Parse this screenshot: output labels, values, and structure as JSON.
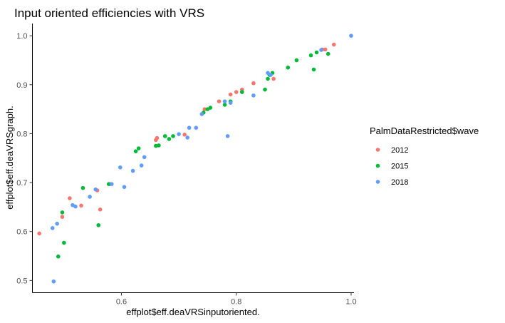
{
  "chart_data": {
    "type": "scatter",
    "title": "Input oriented efficiencies with VRS",
    "xlabel": "effplot$eff.deaVRSinputoriented.",
    "ylabel": "effplot$eff.deaVRSgraph.",
    "xlim": [
      0.445,
      1.005
    ],
    "ylim": [
      0.475,
      1.025
    ],
    "x_ticks": [
      0.6,
      0.8,
      1.0
    ],
    "x_tick_labels": [
      "0.6",
      "0.8",
      "1.0"
    ],
    "y_ticks": [
      0.5,
      0.6,
      0.7,
      0.8,
      0.9,
      1.0
    ],
    "y_tick_labels": [
      "0.5",
      "0.6",
      "0.7",
      "0.8",
      "0.9",
      "1.0"
    ],
    "grid": false,
    "legend": {
      "title": "PalmDataRestricted$wave",
      "position": "right"
    },
    "series": [
      {
        "name": "2012",
        "color": "#F8766D",
        "points": [
          [
            0.457,
            0.596
          ],
          [
            0.497,
            0.63
          ],
          [
            0.51,
            0.668
          ],
          [
            0.53,
            0.653
          ],
          [
            0.558,
            0.684
          ],
          [
            0.563,
            0.645
          ],
          [
            0.58,
            0.697
          ],
          [
            0.66,
            0.787
          ],
          [
            0.662,
            0.791
          ],
          [
            0.71,
            0.798
          ],
          [
            0.745,
            0.85
          ],
          [
            0.77,
            0.866
          ],
          [
            0.79,
            0.88
          ],
          [
            0.8,
            0.885
          ],
          [
            0.81,
            0.89
          ],
          [
            0.83,
            0.903
          ],
          [
            0.865,
            0.912
          ],
          [
            0.95,
            0.972
          ],
          [
            0.955,
            0.972
          ],
          [
            0.97,
            0.982
          ]
        ]
      },
      {
        "name": "2015",
        "color": "#00BA38",
        "points": [
          [
            0.49,
            0.549
          ],
          [
            0.497,
            0.639
          ],
          [
            0.5,
            0.577
          ],
          [
            0.533,
            0.689
          ],
          [
            0.56,
            0.613
          ],
          [
            0.578,
            0.697
          ],
          [
            0.625,
            0.764
          ],
          [
            0.63,
            0.77
          ],
          [
            0.66,
            0.775
          ],
          [
            0.665,
            0.776
          ],
          [
            0.676,
            0.795
          ],
          [
            0.683,
            0.789
          ],
          [
            0.69,
            0.795
          ],
          [
            0.743,
            0.843
          ],
          [
            0.75,
            0.85
          ],
          [
            0.755,
            0.853
          ],
          [
            0.78,
            0.859
          ],
          [
            0.79,
            0.866
          ],
          [
            0.81,
            0.885
          ],
          [
            0.85,
            0.89
          ],
          [
            0.855,
            0.912
          ],
          [
            0.858,
            0.92
          ],
          [
            0.863,
            0.924
          ],
          [
            0.89,
            0.935
          ],
          [
            0.905,
            0.95
          ],
          [
            0.93,
            0.96
          ],
          [
            0.94,
            0.966
          ],
          [
            0.96,
            0.963
          ],
          [
            0.935,
            0.931
          ]
        ]
      },
      {
        "name": "2018",
        "color": "#619CFF",
        "points": [
          [
            0.482,
            0.498
          ],
          [
            0.48,
            0.607
          ],
          [
            0.488,
            0.616
          ],
          [
            0.515,
            0.654
          ],
          [
            0.52,
            0.651
          ],
          [
            0.545,
            0.671
          ],
          [
            0.555,
            0.686
          ],
          [
            0.583,
            0.697
          ],
          [
            0.598,
            0.731
          ],
          [
            0.605,
            0.691
          ],
          [
            0.62,
            0.724
          ],
          [
            0.635,
            0.735
          ],
          [
            0.64,
            0.752
          ],
          [
            0.7,
            0.799
          ],
          [
            0.715,
            0.792
          ],
          [
            0.718,
            0.812
          ],
          [
            0.73,
            0.812
          ],
          [
            0.74,
            0.84
          ],
          [
            0.78,
            0.866
          ],
          [
            0.79,
            0.863
          ],
          [
            0.785,
            0.795
          ],
          [
            0.83,
            0.878
          ],
          [
            0.855,
            0.924
          ],
          [
            0.86,
            0.92
          ],
          [
            0.948,
            0.971
          ],
          [
            1.0,
            1.0
          ]
        ]
      }
    ]
  }
}
